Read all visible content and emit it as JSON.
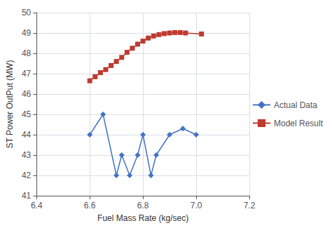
{
  "chart_data": {
    "type": "line",
    "x_label": "Fuel Mass Rate (kg/sec)",
    "y_label": "ST Power OutPut (MW)",
    "series": [
      {
        "name": "Actual Data",
        "color": "#4472C4",
        "marker": "diamond",
        "x": [
          6.6,
          6.65,
          6.7,
          6.72,
          6.75,
          6.78,
          6.8,
          6.83,
          6.85,
          6.9,
          6.95,
          7.0
        ],
        "values": [
          44.0,
          45.0,
          42.0,
          43.0,
          42.0,
          43.0,
          44.0,
          42.0,
          43.0,
          44.0,
          44.3,
          44.0
        ]
      },
      {
        "name": "Model Result",
        "color": "#BE3A2E",
        "marker": "square",
        "x": [
          6.6,
          6.62,
          6.64,
          6.66,
          6.68,
          6.7,
          6.72,
          6.74,
          6.76,
          6.78,
          6.8,
          6.82,
          6.84,
          6.86,
          6.88,
          6.9,
          6.92,
          6.94,
          6.96,
          7.02
        ],
        "values": [
          46.65,
          46.85,
          47.05,
          47.2,
          47.4,
          47.6,
          47.8,
          48.05,
          48.25,
          48.45,
          48.6,
          48.75,
          48.85,
          48.92,
          48.97,
          49.0,
          49.02,
          49.02,
          49.0,
          48.95
        ]
      }
    ],
    "xlim": [
      6.4,
      7.2
    ],
    "ylim": [
      41,
      50
    ],
    "xticks": [
      6.4,
      6.6,
      6.8,
      {
        "value": 7.0,
        "label": "7.0"
      },
      7.2
    ],
    "yticks": [
      41,
      42,
      43,
      44,
      45,
      46,
      47,
      48,
      49,
      50
    ],
    "grid": true,
    "legend": "right"
  }
}
